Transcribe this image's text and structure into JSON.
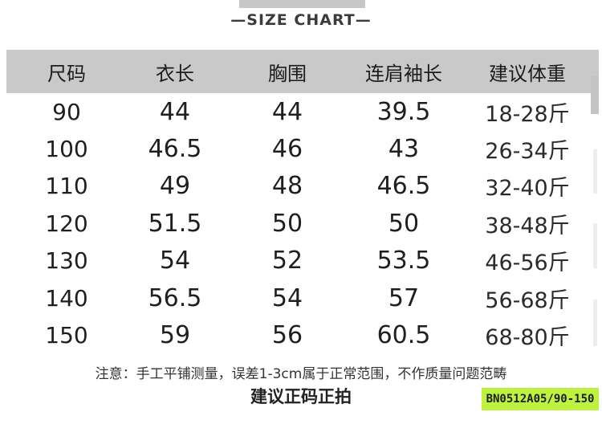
{
  "header": {
    "title": "—SIZE CHART—"
  },
  "size_table": {
    "columns": [
      "尺码",
      "衣长",
      "胸围",
      "连肩袖长",
      "建议体重"
    ],
    "rows": [
      [
        "90",
        "44",
        "44",
        "39.5",
        "18-28斤"
      ],
      [
        "100",
        "46.5",
        "46",
        "43",
        "26-34斤"
      ],
      [
        "110",
        "49",
        "48",
        "46.5",
        "32-40斤"
      ],
      [
        "120",
        "51.5",
        "50",
        "50",
        "38-48斤"
      ],
      [
        "130",
        "54",
        "52",
        "53.5",
        "46-56斤"
      ],
      [
        "140",
        "56.5",
        "54",
        "57",
        "56-68斤"
      ],
      [
        "150",
        "59",
        "56",
        "60.5",
        "68-80斤"
      ]
    ]
  },
  "footer": {
    "note": "注意：手工平铺测量，误差1-3cm属于正常范围，不作质量问题范畴",
    "advice": "建议正码正拍",
    "badge": "BN0512A05/90-150"
  },
  "colors": {
    "table_header_bg": "#c9c9c9",
    "badge_bg": "#bdf33e",
    "badge_text": "#1c1c1c",
    "top_bar": "#c7c7c7"
  }
}
